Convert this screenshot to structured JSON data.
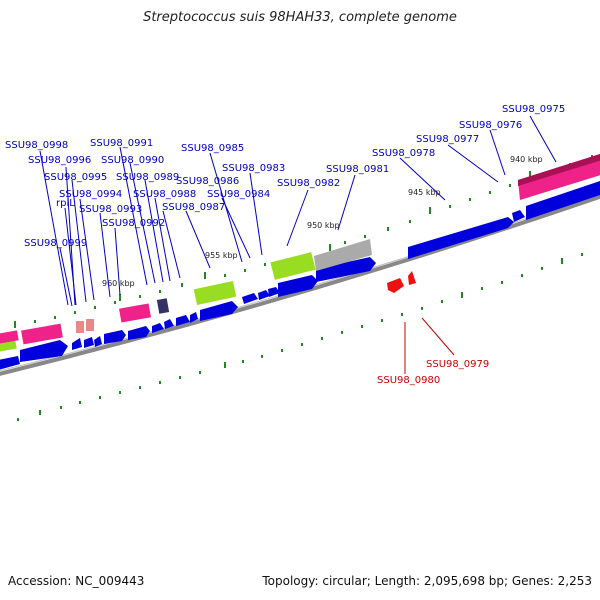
{
  "title": "Streptococcus suis 98HAH33, complete genome",
  "accession_label": "Accession: NC_009443",
  "stats_label": "Topology: circular; Length: 2,095,698 bp; Genes: 2,253",
  "colors": {
    "backbone": "#888888",
    "cds": "#0000dd",
    "rrna_pink": "#ee2288",
    "trna_salmon": "#e88888",
    "misc_green": "#99dd22",
    "gray_feature": "#aaaaaa",
    "dark_feature": "#333366",
    "tick": "#228822",
    "label_blue": "#0000bb",
    "label_red": "#cc0000"
  },
  "kbp_labels": [
    "960 kbp",
    "955 kbp",
    "950 kbp",
    "945 kbp",
    "940 kbp"
  ],
  "gene_labels_blue": [
    "SSU98_0998",
    "SSU98_0996",
    "SSU98_0995",
    "SSU98_0994",
    "SSU98_0993",
    "SSU98_0992",
    "SSU98_0991",
    "SSU98_0990",
    "SSU98_0989",
    "SSU98_0988",
    "SSU98_0987",
    "SSU98_0986",
    "SSU98_0985",
    "SSU98_0984",
    "SSU98_0983",
    "SSU98_0982",
    "SSU98_0981",
    "SSU98_0978",
    "SSU98_0977",
    "SSU98_0976",
    "SSU98_0975",
    "rplL",
    "SSU98_0999"
  ],
  "gene_labels_red": [
    "SSU98_0979",
    "SSU98_0980"
  ]
}
